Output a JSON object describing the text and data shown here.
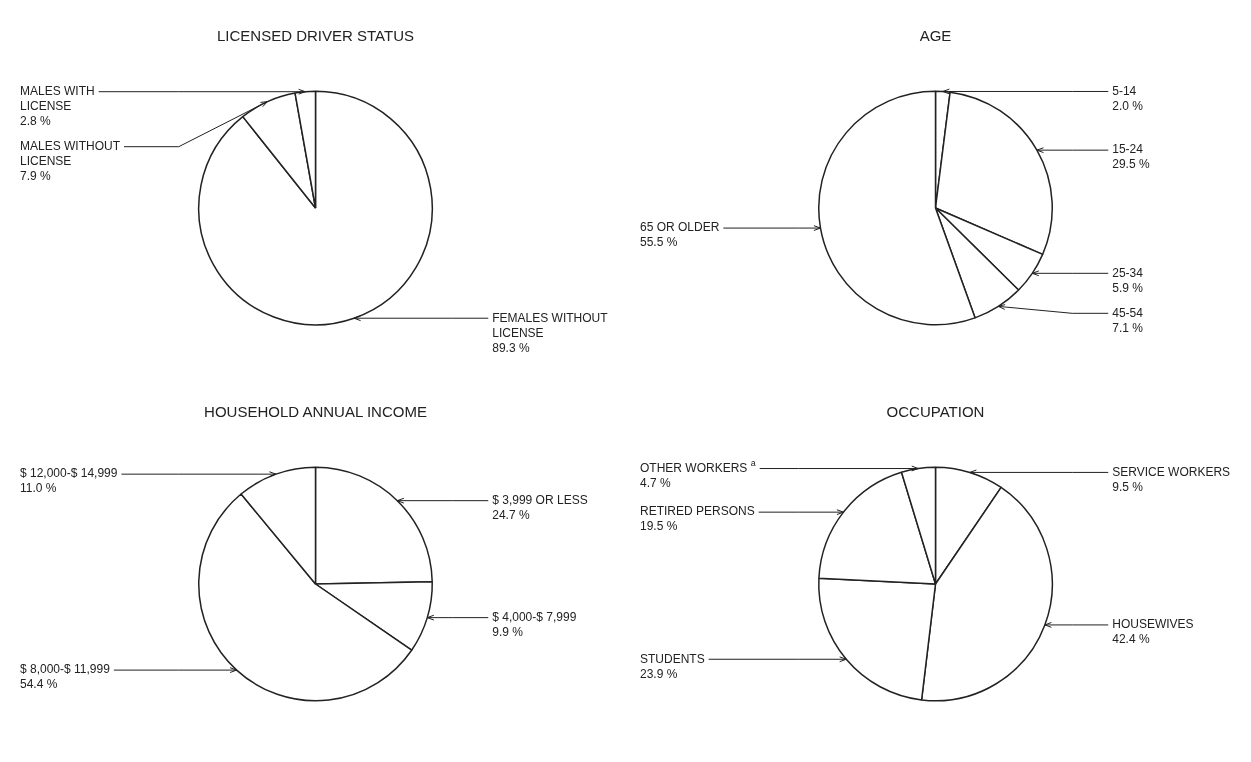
{
  "chart_data": [
    {
      "type": "pie",
      "title": "LICENSED DRIVER STATUS",
      "categories": [
        "FEMALES WITHOUT LICENSE",
        "MALES WITHOUT LICENSE",
        "MALES WITH LICENSE"
      ],
      "values": [
        89.3,
        7.9,
        2.8
      ],
      "value_labels": [
        "89.3 %",
        "7.9 %",
        "2.8 %"
      ],
      "colors": [
        "#ffffff",
        "#ffffff",
        "#ffffff"
      ],
      "legend": false
    },
    {
      "type": "pie",
      "title": "AGE",
      "categories": [
        "5-14",
        "15-24",
        "25-34",
        "45-54",
        "65 OR OLDER"
      ],
      "values": [
        2.0,
        29.5,
        5.9,
        7.1,
        55.5
      ],
      "value_labels": [
        "2.0 %",
        "29.5 %",
        "5.9 %",
        "7.1 %",
        "55.5 %"
      ],
      "colors": [
        "#ffffff",
        "#ffffff",
        "#ffffff",
        "#ffffff",
        "#ffffff"
      ],
      "legend": false
    },
    {
      "type": "pie",
      "title": "HOUSEHOLD ANNUAL INCOME",
      "categories": [
        "$ 3,999 OR LESS",
        "$ 4,000-$ 7,999",
        "$ 8,000-$ 11,999",
        "$ 12,000-$ 14,999"
      ],
      "values": [
        24.7,
        9.9,
        54.4,
        11.0
      ],
      "value_labels": [
        "24.7 %",
        "9.9 %",
        "54.4 %",
        "11.0 %"
      ],
      "colors": [
        "#ffffff",
        "#ffffff",
        "#ffffff",
        "#ffffff"
      ],
      "legend": false
    },
    {
      "type": "pie",
      "title": "OCCUPATION",
      "categories": [
        "SERVICE WORKERS",
        "HOUSEWIVES",
        "STUDENTS",
        "RETIRED PERSONS",
        "OTHER WORKERS $^{a}$"
      ],
      "values": [
        9.5,
        42.4,
        23.9,
        19.5,
        4.7
      ],
      "value_labels": [
        "9.5 %",
        "42.4 %",
        "23.9 %",
        "19.5 %",
        "4.7 %"
      ],
      "colors": [
        "#ffffff",
        "#ffffff",
        "#ffffff",
        "#ffffff",
        "#ffffff"
      ],
      "legend": false
    }
  ]
}
